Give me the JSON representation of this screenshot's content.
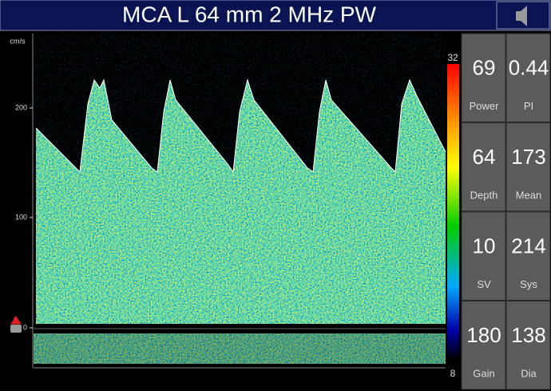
{
  "header": {
    "title": "MCA L 64 mm 2 MHz PW"
  },
  "axis": {
    "unit": "cm/s",
    "labels": [
      "200",
      "100",
      "0"
    ]
  },
  "color_scale": {
    "max": "32",
    "min": "8"
  },
  "metrics": [
    {
      "value": 69,
      "label": "Power"
    },
    {
      "value": 0.44,
      "label": "PI"
    },
    {
      "value": 64,
      "label": "Depth"
    },
    {
      "value": 173,
      "label": "Mean"
    },
    {
      "value": 10,
      "label": "SV"
    },
    {
      "value": 214,
      "label": "Sys"
    },
    {
      "value": 180,
      "label": "Gain"
    },
    {
      "value": 138,
      "label": "Dia"
    }
  ]
}
